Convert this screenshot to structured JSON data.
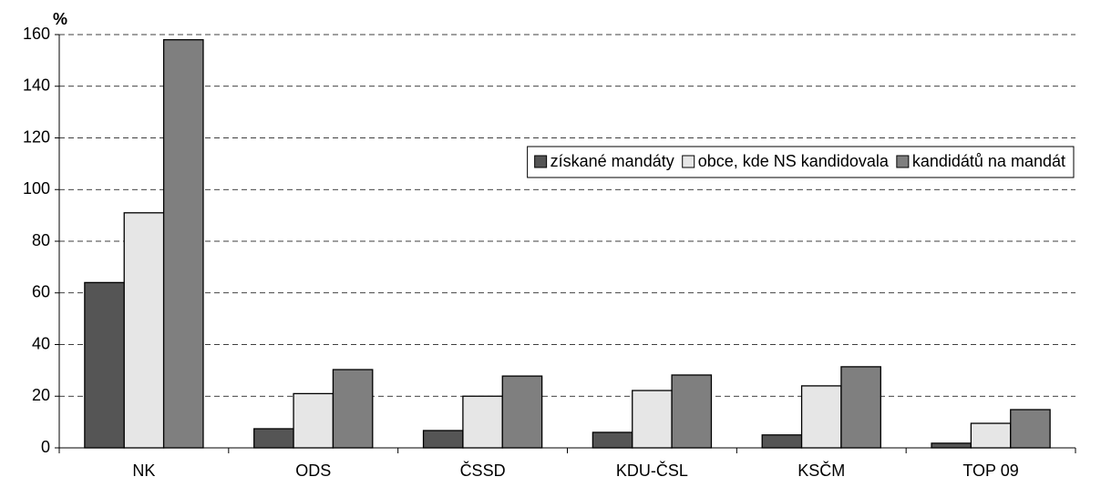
{
  "chart_data": {
    "type": "bar",
    "y_label": "%",
    "categories": [
      "NK",
      "ODS",
      "ČSSD",
      "KDU-ČSL",
      "KSČM",
      "TOP 09"
    ],
    "series": [
      {
        "name": "získané mandáty",
        "color": "#555555",
        "values": [
          64,
          7.4,
          6.7,
          6,
          5,
          1.8
        ]
      },
      {
        "name": "obce, kde NS kandidovala",
        "color": "#e6e6e6",
        "values": [
          91,
          21,
          20,
          22.2,
          24,
          9.5
        ]
      },
      {
        "name": "kandidátů na mandát",
        "color": "#7f7f7f",
        "values": [
          158,
          30.3,
          27.8,
          28.2,
          31.4,
          14.8
        ]
      }
    ],
    "ylim": [
      0,
      160
    ],
    "yticks": [
      0,
      20,
      40,
      60,
      80,
      100,
      120,
      140,
      160
    ],
    "grid": true,
    "legend": "right"
  }
}
